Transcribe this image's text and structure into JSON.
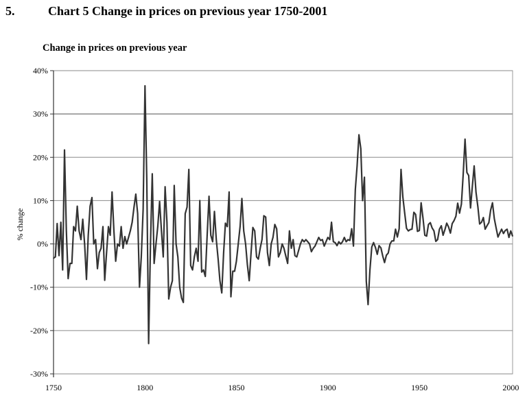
{
  "heading": {
    "number": "5.",
    "title": "Chart 5 Change in prices on previous year 1750-2001"
  },
  "chart_data": {
    "type": "line",
    "title": "Change in prices on previous year",
    "xlabel": "",
    "ylabel": "% change",
    "xlim": [
      1750,
      2001
    ],
    "ylim": [
      -30,
      40
    ],
    "x_ticks": [
      1750,
      1800,
      1850,
      1900,
      1950,
      2000
    ],
    "x_tick_labels": [
      "1750",
      "1800",
      "1850",
      "1900",
      "1950",
      "2000"
    ],
    "y_ticks": [
      -30,
      -20,
      -10,
      0,
      10,
      20,
      30,
      40
    ],
    "y_tick_labels": [
      "-30%",
      "-20%",
      "-10%",
      "0%",
      "10%",
      "20%",
      "30%",
      "40%"
    ],
    "grid": "horizontal",
    "legend": "none",
    "line_color": "#333333",
    "x_start": 1750,
    "values": [
      -3.3,
      -3,
      4.7,
      -2.7,
      5,
      -6,
      21.7,
      3,
      -8,
      -4.5,
      -4.5,
      4,
      3,
      8.7,
      3,
      1,
      5.7,
      0,
      -8.2,
      2,
      8.7,
      10.7,
      0,
      1,
      -5.7,
      -2,
      -1,
      4,
      -8.4,
      -2,
      4,
      2,
      12,
      3,
      -4,
      0,
      -0.5,
      4,
      -1,
      1.7,
      0,
      1.5,
      3,
      5,
      8.5,
      11.5,
      7,
      -10,
      -3,
      8,
      36.5,
      15,
      -23,
      0,
      16.2,
      -4.5,
      0,
      4,
      9.8,
      3,
      -3,
      13.2,
      5,
      -12.7,
      -10,
      -8.5,
      13.5,
      0,
      -3,
      -10,
      -12.5,
      -13.5,
      7,
      8.5,
      17.2,
      -5,
      -6,
      -3,
      -1,
      -4,
      10,
      -6.5,
      -6,
      -7.5,
      2,
      11,
      2,
      0.5,
      7.5,
      1,
      -3.5,
      -8.5,
      -11.3,
      -2,
      4.8,
      4,
      12,
      -12.2,
      -6.3,
      -6.3,
      -4,
      0,
      4,
      10.5,
      3,
      0,
      -4.8,
      -8.5,
      -2,
      3.8,
      3,
      -3,
      -3.5,
      -1,
      1,
      6.5,
      6.2,
      -2,
      -5,
      0,
      1.5,
      4.5,
      3.5,
      -3,
      -2,
      0,
      -1,
      -2.8,
      -4.5,
      3,
      -1,
      1,
      -2.7,
      -3,
      -1.5,
      0,
      1,
      0.5,
      1,
      0.5,
      0,
      -1.8,
      -1,
      -0.5,
      0.5,
      1.5,
      0.8,
      1,
      -0.5,
      0.5,
      1.5,
      1,
      5,
      0.5,
      0.3,
      -0.4,
      0.5,
      0,
      0.5,
      1.5,
      0.5,
      1,
      0.8,
      3.5,
      -0.5,
      12.5,
      18,
      25.2,
      22,
      10,
      15.4,
      -8.6,
      -14,
      -6,
      -0.7,
      0.3,
      -0.8,
      -2.4,
      -0.4,
      -0.9,
      -2.8,
      -4.3,
      -2.6,
      -2.1,
      0,
      0.7,
      0.7,
      3.4,
      1.6,
      3.5,
      17.2,
      10.8,
      7.2,
      3.6,
      3,
      3.3,
      3.4,
      7.3,
      6.8,
      2.9,
      3.1,
      9.5,
      6,
      2,
      1.8,
      4.5,
      4.9,
      3.7,
      3,
      0.6,
      1,
      3.4,
      4.2,
      2,
      3.3,
      4.8,
      3.9,
      2.5,
      4.7,
      5.4,
      6.4,
      9.4,
      7.1,
      9.2,
      16,
      24.2,
      16.5,
      15.8,
      8.3,
      13.4,
      18,
      11.9,
      8.6,
      4.6,
      5,
      6.1,
      3.4,
      4.2,
      4.9,
      7.8,
      9.5,
      5.9,
      3.7,
      1.6,
      2.5,
      3.4,
      2.4,
      3.1,
      3.4,
      1.5,
      3,
      1.8
    ]
  }
}
